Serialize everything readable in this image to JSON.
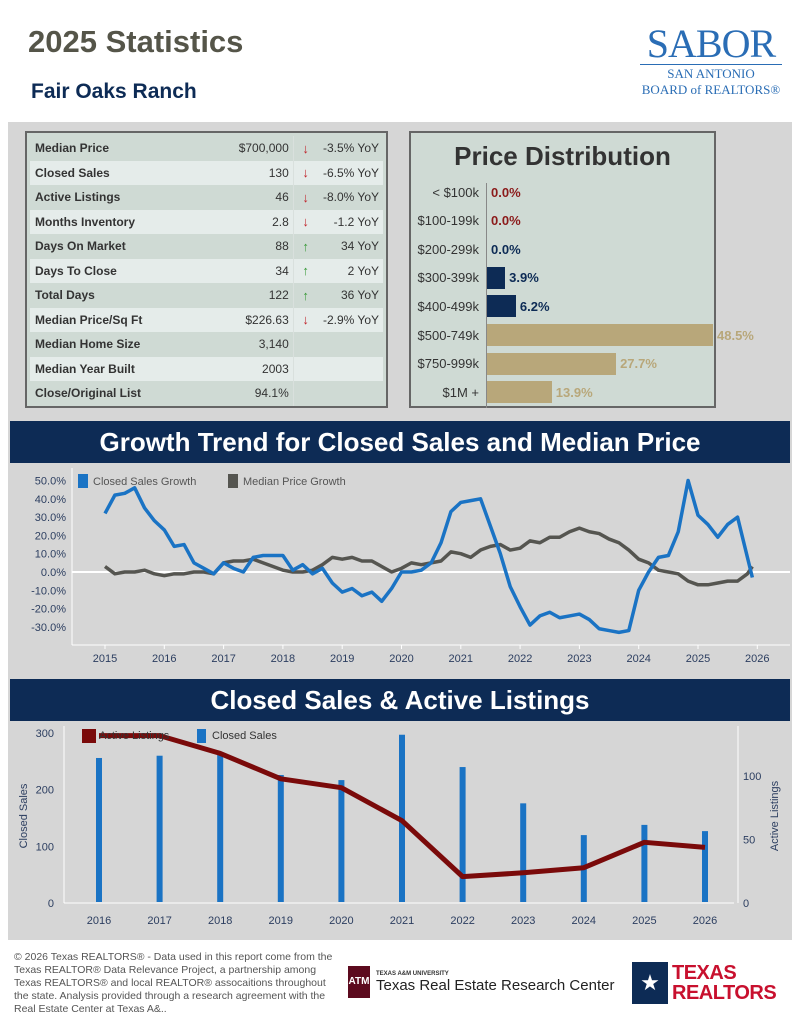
{
  "header": {
    "title": "2025 Statistics",
    "area": "Fair Oaks Ranch",
    "logo": {
      "main": "SABOR",
      "line1": "SAN ANTONIO",
      "line2": "BOARD of REALTORS®"
    }
  },
  "colors": {
    "navy": "#0d2b55",
    "tan": "#b8a77a",
    "red": "#c0262d",
    "green": "#3a9a3a",
    "blue": "#1a73c4",
    "gray": "#555550",
    "maroon": "#7a0a0a"
  },
  "stats": [
    {
      "label": "Median Price",
      "value": "$700,000",
      "trend": "down",
      "change": "-3.5% YoY"
    },
    {
      "label": "Closed Sales",
      "value": "130",
      "trend": "down",
      "change": "-6.5% YoY"
    },
    {
      "label": "Active Listings",
      "value": "46",
      "trend": "down",
      "change": "-8.0% YoY"
    },
    {
      "label": "Months Inventory",
      "value": "2.8",
      "trend": "down",
      "change": "-1.2 YoY"
    },
    {
      "label": "Days On Market",
      "value": "88",
      "trend": "up",
      "change": "34 YoY"
    },
    {
      "label": "Days To Close",
      "value": "34",
      "trend": "up",
      "change": "2 YoY"
    },
    {
      "label": "Total Days",
      "value": "122",
      "trend": "up",
      "change": "36 YoY"
    },
    {
      "label": "Median Price/Sq Ft",
      "value": "$226.63",
      "trend": "down",
      "change": "-2.9% YoY"
    },
    {
      "label": "Median Home Size",
      "value": "3,140"
    },
    {
      "label": "Median Year Built",
      "value": "2003"
    },
    {
      "label": "Close/Original List",
      "value": "94.1%"
    }
  ],
  "chart_data": [
    {
      "type": "bar",
      "title": "Price Distribution",
      "categories": [
        "< $100k",
        "$100-199k",
        "$200-299k",
        "$300-399k",
        "$400-499k",
        "$500-749k",
        "$750-999k",
        "$1M +"
      ],
      "values": [
        0.0,
        0.0,
        0.0,
        3.9,
        6.2,
        48.5,
        27.7,
        13.9
      ],
      "labels": [
        "0.0%",
        "0.0%",
        "0.0%",
        "3.9%",
        "6.2%",
        "48.5%",
        "27.7%",
        "13.9%"
      ],
      "orientation": "horizontal"
    },
    {
      "type": "line",
      "title": "Growth Trend for Closed Sales and Median Price",
      "yticks": [
        "50.0%",
        "40.0%",
        "30.0%",
        "20.0%",
        "10.0%",
        "0.0%",
        "-10.0%",
        "-20.0%",
        "-30.0%"
      ],
      "ylim": [
        -35,
        52
      ],
      "xticks": [
        "2015",
        "2016",
        "2017",
        "2018",
        "2019",
        "2020",
        "2021",
        "2022",
        "2023",
        "2024",
        "2025",
        "2026"
      ],
      "x": [
        "2015-01",
        "2015-03",
        "2015-05",
        "2015-07",
        "2015-09",
        "2015-11",
        "2016-01",
        "2016-03",
        "2016-05",
        "2016-07",
        "2016-09",
        "2016-11",
        "2017-01",
        "2017-03",
        "2017-05",
        "2017-07",
        "2017-09",
        "2017-11",
        "2018-01",
        "2018-03",
        "2018-05",
        "2018-07",
        "2018-09",
        "2018-11",
        "2019-01",
        "2019-03",
        "2019-05",
        "2019-07",
        "2019-09",
        "2019-11",
        "2020-01",
        "2020-03",
        "2020-05",
        "2020-07",
        "2020-09",
        "2020-11",
        "2021-01",
        "2021-03",
        "2021-05",
        "2021-07",
        "2021-09",
        "2021-11",
        "2022-01",
        "2022-03",
        "2022-05",
        "2022-07",
        "2022-09",
        "2022-11",
        "2023-01",
        "2023-03",
        "2023-05",
        "2023-07",
        "2023-09",
        "2023-11",
        "2024-01",
        "2024-03",
        "2024-05",
        "2024-07",
        "2024-09",
        "2024-11",
        "2025-01",
        "2025-03",
        "2025-05",
        "2025-07",
        "2025-09",
        "2025-11",
        "2025-12"
      ],
      "series": [
        {
          "name": "Closed Sales Growth",
          "color": "#1a73c4",
          "values": [
            32,
            42,
            43,
            46,
            35,
            28,
            23,
            14,
            15,
            5,
            2,
            -1,
            5,
            2,
            0,
            8,
            9,
            9,
            9,
            1,
            4,
            -1,
            2,
            -6,
            -11,
            -9,
            -13,
            -11,
            -16,
            -9,
            0,
            0,
            1,
            5,
            16,
            33,
            38,
            39,
            40,
            25,
            10,
            -8,
            -19,
            -29,
            -24,
            -22,
            -25,
            -24,
            -23,
            -26,
            -31,
            -32,
            -33,
            -32,
            -10,
            0,
            8,
            9,
            22,
            50,
            31,
            26,
            19,
            26,
            30,
            8,
            -3
          ]
        },
        {
          "name": "Median Price Growth",
          "color": "#555550",
          "values": [
            3,
            -1,
            0,
            0,
            1,
            -1,
            -2,
            -1,
            -1,
            0,
            0,
            -1,
            5,
            6,
            6,
            7,
            5,
            3,
            1,
            0,
            0,
            1,
            4,
            8,
            7,
            8,
            6,
            6,
            3,
            0,
            2,
            5,
            4,
            5,
            6,
            11,
            10,
            8,
            12,
            14,
            15,
            12,
            13,
            17,
            16,
            19,
            19,
            22,
            24,
            22,
            21,
            18,
            16,
            12,
            7,
            5,
            1,
            0,
            -1,
            -5,
            -7,
            -7,
            -6,
            -5,
            -5,
            -1,
            3
          ]
        }
      ]
    },
    {
      "type": "bar",
      "title": "Closed Sales & Active Listings",
      "categories": [
        "2016",
        "2017",
        "2018",
        "2019",
        "2020",
        "2021",
        "2022",
        "2023",
        "2024",
        "2025",
        "2026"
      ],
      "ylabel": "Closed Sales",
      "y2label": "Active Listings",
      "ylim": [
        0,
        300
      ],
      "yticks": [
        "300",
        "200",
        "100",
        "0"
      ],
      "y2lim": [
        0,
        135
      ],
      "y2ticks": [
        "100",
        "50",
        "0"
      ],
      "series": [
        {
          "name": "Active Listings",
          "type": "line",
          "color": "#7a0a0a",
          "axis": "right",
          "values": [
            131,
            131,
            117,
            97,
            90,
            64,
            20,
            23,
            27,
            47,
            43
          ]
        },
        {
          "name": "Closed Sales",
          "type": "bar",
          "color": "#1a73c4",
          "axis": "left",
          "values": [
            254,
            258,
            261,
            224,
            215,
            295,
            238,
            174,
            118,
            136,
            125
          ]
        }
      ]
    }
  ],
  "footer": {
    "text": "© 2026 Texas REALTORS® - Data used in this report come from the Texas REALTOR® Data Relevance Project, a partnership among Texas REALTORS® and local REALTOR® assocaitions throughout the state. Analysis provided through a research agreement with the Real Estate Center at Texas A&..",
    "tamu_small": "TEXAS A&M UNIVERSITY",
    "tamu_main": "Texas Real Estate Research Center",
    "tamu_mark": "ATM",
    "tr_line1": "TEXAS",
    "tr_line2": "REALTORS"
  }
}
